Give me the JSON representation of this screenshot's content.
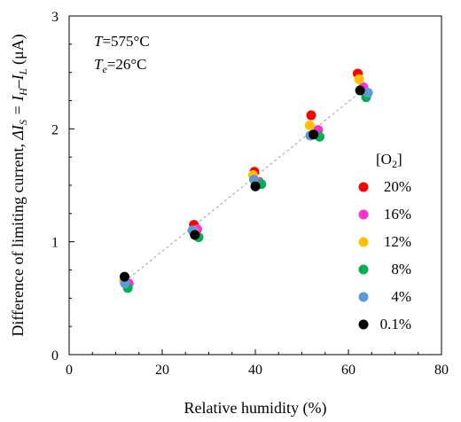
{
  "chart_data": {
    "type": "scatter",
    "annotations": {
      "line1": {
        "var": "T",
        "value": "=575°C"
      },
      "line2": {
        "var": "T",
        "sub": "e",
        "value": "=26°C"
      }
    },
    "xlabel": "Relative humidity (%)",
    "ylabel": {
      "prefix": "Difference of limiting current, ",
      "delta": "ΔI",
      "sub_s": "S",
      "eq": " = I",
      "sub_h": "H",
      "minus": "–I",
      "sub_l": "L",
      "unit": " (μA)"
    },
    "xlim": [
      0,
      80
    ],
    "ylim": [
      0,
      3
    ],
    "xticks": [
      "0",
      "20",
      "40",
      "60",
      "80"
    ],
    "yticks": [
      "0",
      "1",
      "2",
      "3"
    ],
    "x_minor_step": 5,
    "y_minor_step": 0.25,
    "grid": false,
    "legend": {
      "title_base": "[O",
      "title_sub": "2",
      "title_end": "]",
      "placement": "right"
    },
    "trendline": {
      "style": "dotted",
      "color": "#a0a0a0",
      "x": [
        12,
        63
      ],
      "y": [
        0.65,
        2.34
      ]
    },
    "series": [
      {
        "name": "20%",
        "color": "#ff0000",
        "x": [
          12.5,
          26.8,
          39.8,
          52.0,
          62.0
        ],
        "y": [
          0.63,
          1.15,
          1.62,
          2.12,
          2.49
        ]
      },
      {
        "name": "16%",
        "color": "#ff33cc",
        "x": [
          12.8,
          27.5,
          40.8,
          53.5,
          63.2
        ],
        "y": [
          0.63,
          1.11,
          1.53,
          1.99,
          2.37
        ]
      },
      {
        "name": "12%",
        "color": "#ffc000",
        "x": [
          11.8,
          26.6,
          39.5,
          51.7,
          62.3
        ],
        "y": [
          0.65,
          1.1,
          1.59,
          2.03,
          2.44
        ]
      },
      {
        "name": "8%",
        "color": "#00b050",
        "x": [
          12.6,
          27.8,
          41.3,
          53.8,
          63.8
        ],
        "y": [
          0.59,
          1.04,
          1.51,
          1.93,
          2.28
        ]
      },
      {
        "name": "4%",
        "color": "#5b9bd5",
        "x": [
          12.0,
          26.5,
          39.7,
          51.8,
          64.2
        ],
        "y": [
          0.63,
          1.1,
          1.55,
          1.94,
          2.32
        ]
      },
      {
        "name": "0.1%",
        "color": "#000000",
        "x": [
          11.9,
          27.0,
          40.0,
          52.5,
          62.5
        ],
        "y": [
          0.69,
          1.06,
          1.49,
          1.95,
          2.34
        ]
      }
    ]
  }
}
